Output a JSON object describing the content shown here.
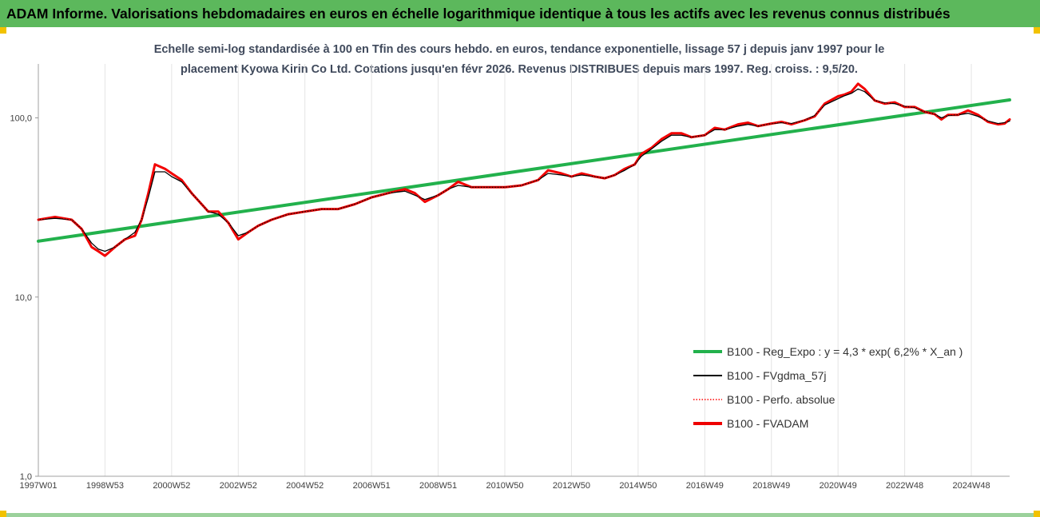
{
  "banner": {
    "title": "ADAM Informe. Valorisations hebdomadaires en euros en échelle logarithmique identique à tous les actifs avec les revenus connus distribués"
  },
  "colors": {
    "banner_bg": "#5cb85c",
    "corner": "#f2c200",
    "trend": "#22b14c",
    "fvgdma": "#000000",
    "perfo": "#ff0000",
    "fvadam": "#ee0000"
  },
  "chart_data": {
    "type": "line",
    "subtitle_line1": "Echelle semi-log standardisée à 100 en Tfin des cours hebdo. en euros, tendance exponentielle, lissage 57 j depuis janv 1997 pour le",
    "subtitle_line2": "placement Kyowa Kirin Co Ltd. Cotations jusqu'en févr 2026. Revenus DISTRIBUES depuis mars 1997. Reg. croiss. : 9,5/20.",
    "y_scale": "log",
    "ylim": [
      1,
      200
    ],
    "y_ticks": [
      {
        "value": 1,
        "label": "1,0"
      },
      {
        "value": 10,
        "label": "10,0"
      },
      {
        "value": 100,
        "label": "100,0"
      }
    ],
    "xlim": [
      1997.0,
      2026.15
    ],
    "x_ticks": [
      {
        "x": 1997.0,
        "label": "1997W01"
      },
      {
        "x": 1999.0,
        "label": "1998W53"
      },
      {
        "x": 2001.0,
        "label": "2000W52"
      },
      {
        "x": 2003.0,
        "label": "2002W52"
      },
      {
        "x": 2005.0,
        "label": "2004W52"
      },
      {
        "x": 2007.0,
        "label": "2006W51"
      },
      {
        "x": 2009.0,
        "label": "2008W51"
      },
      {
        "x": 2011.0,
        "label": "2010W50"
      },
      {
        "x": 2013.0,
        "label": "2012W50"
      },
      {
        "x": 2015.0,
        "label": "2014W50"
      },
      {
        "x": 2017.0,
        "label": "2016W49"
      },
      {
        "x": 2019.0,
        "label": "2018W49"
      },
      {
        "x": 2021.0,
        "label": "2020W49"
      },
      {
        "x": 2023.0,
        "label": "2022W48"
      },
      {
        "x": 2025.0,
        "label": "2024W48"
      }
    ],
    "grid": "vertical",
    "legend_position": "bottom-right",
    "legend": [
      {
        "label": "B100 - Reg_Expo : y = 4,3 * exp( 6,2% *  X_an )",
        "color": "#22b14c",
        "style": "solid-thick"
      },
      {
        "label": "B100 - FVgdma_57j",
        "color": "#000000",
        "style": "solid-thin"
      },
      {
        "label": "B100 - Perfo. absolue",
        "color": "#ff0000",
        "style": "dotted"
      },
      {
        "label": "B100 - FVADAM",
        "color": "#ee0000",
        "style": "solid-thick"
      }
    ],
    "series": [
      {
        "name": "B100 - Reg_Expo : y = 4,3 * exp( 6,2% *  X_an )",
        "x": [
          1997.0,
          2026.15
        ],
        "values": [
          20.5,
          126
        ]
      },
      {
        "name": "B100 - FVADAM",
        "x": [
          1997.0,
          1997.5,
          1998.0,
          1998.3,
          1998.6,
          1998.8,
          1999.0,
          1999.3,
          1999.6,
          1999.9,
          2000.1,
          2000.3,
          2000.5,
          2000.8,
          2001.0,
          2001.3,
          2001.6,
          2001.9,
          2002.1,
          2002.4,
          2002.7,
          2003.0,
          2003.3,
          2003.6,
          2004.0,
          2004.5,
          2005.0,
          2005.5,
          2006.0,
          2006.5,
          2007.0,
          2007.5,
          2008.0,
          2008.3,
          2008.6,
          2009.0,
          2009.3,
          2009.6,
          2010.0,
          2010.5,
          2011.0,
          2011.5,
          2012.0,
          2012.3,
          2012.7,
          2013.0,
          2013.3,
          2013.7,
          2014.0,
          2014.3,
          2014.6,
          2014.9,
          2015.1,
          2015.4,
          2015.7,
          2016.0,
          2016.3,
          2016.6,
          2017.0,
          2017.3,
          2017.6,
          2018.0,
          2018.3,
          2018.6,
          2019.0,
          2019.3,
          2019.6,
          2020.0,
          2020.3,
          2020.6,
          2021.0,
          2021.2,
          2021.4,
          2021.6,
          2021.8,
          2022.1,
          2022.4,
          2022.7,
          2023.0,
          2023.3,
          2023.6,
          2023.9,
          2024.1,
          2024.3,
          2024.6,
          2024.9,
          2025.2,
          2025.5,
          2025.8,
          2026.0,
          2026.15
        ],
        "values": [
          27,
          28,
          27,
          24,
          19,
          18,
          17,
          19,
          21,
          22,
          27,
          38,
          55,
          52,
          49,
          45,
          38,
          33,
          30,
          30,
          26,
          21,
          23,
          25,
          27,
          29,
          30,
          31,
          31,
          33,
          36,
          38,
          40,
          38,
          34,
          37,
          40,
          44,
          41,
          41,
          41,
          42,
          45,
          51,
          49,
          47,
          49,
          47,
          46,
          48,
          52,
          55,
          63,
          68,
          76,
          82,
          82,
          78,
          80,
          88,
          86,
          92,
          94,
          90,
          93,
          95,
          92,
          97,
          102,
          120,
          132,
          135,
          140,
          155,
          145,
          125,
          120,
          122,
          115,
          115,
          108,
          105,
          98,
          104,
          104,
          110,
          104,
          95,
          92,
          93,
          98
        ]
      },
      {
        "name": "B100 - FVgdma_57j",
        "x": [
          1997.0,
          1997.5,
          1998.0,
          1998.3,
          1998.6,
          1998.8,
          1999.0,
          1999.3,
          1999.6,
          1999.9,
          2000.1,
          2000.3,
          2000.5,
          2000.8,
          2001.0,
          2001.3,
          2001.6,
          2001.9,
          2002.1,
          2002.4,
          2002.7,
          2003.0,
          2003.3,
          2003.6,
          2004.0,
          2004.5,
          2005.0,
          2005.5,
          2006.0,
          2006.5,
          2007.0,
          2007.5,
          2008.0,
          2008.3,
          2008.6,
          2009.0,
          2009.3,
          2009.6,
          2010.0,
          2010.5,
          2011.0,
          2011.5,
          2012.0,
          2012.3,
          2012.7,
          2013.0,
          2013.3,
          2013.7,
          2014.0,
          2014.3,
          2014.6,
          2014.9,
          2015.1,
          2015.4,
          2015.7,
          2016.0,
          2016.3,
          2016.6,
          2017.0,
          2017.3,
          2017.6,
          2018.0,
          2018.3,
          2018.6,
          2019.0,
          2019.3,
          2019.6,
          2020.0,
          2020.3,
          2020.6,
          2021.0,
          2021.2,
          2021.4,
          2021.6,
          2021.8,
          2022.1,
          2022.4,
          2022.7,
          2023.0,
          2023.3,
          2023.6,
          2023.9,
          2024.1,
          2024.3,
          2024.6,
          2024.9,
          2025.2,
          2025.5,
          2025.8,
          2026.0,
          2026.15
        ],
        "values": [
          27,
          27.5,
          27,
          24,
          20,
          18.5,
          18,
          19,
          21,
          23,
          27,
          36,
          50,
          50,
          47,
          44,
          38,
          33,
          30,
          29,
          26,
          22,
          23,
          25,
          27,
          29,
          30,
          31,
          31,
          33,
          36,
          38,
          39,
          37,
          35,
          37,
          40,
          42,
          41,
          41,
          41,
          42,
          45,
          49,
          48,
          47,
          48,
          47,
          46,
          48,
          51,
          55,
          61,
          67,
          74,
          80,
          80,
          78,
          80,
          86,
          86,
          90,
          92,
          90,
          93,
          94,
          93,
          97,
          103,
          118,
          128,
          133,
          137,
          145,
          140,
          125,
          121,
          120,
          116,
          114,
          108,
          105,
          100,
          103,
          104,
          106,
          102,
          96,
          93,
          94,
          96
        ]
      },
      {
        "name": "B100 - Perfo. absolue",
        "x": [
          1997.0,
          1997.5,
          1998.0,
          1998.3,
          1998.6,
          1998.8,
          1999.0,
          1999.3,
          1999.6,
          1999.9,
          2000.1,
          2000.3,
          2000.5,
          2000.8,
          2001.0,
          2001.3,
          2001.6,
          2001.9,
          2002.1,
          2002.4,
          2002.7,
          2003.0,
          2003.3,
          2003.6,
          2004.0,
          2004.5,
          2005.0,
          2005.5,
          2006.0,
          2006.5,
          2007.0,
          2007.5,
          2008.0,
          2008.3,
          2008.6,
          2009.0,
          2009.3,
          2009.6,
          2010.0,
          2010.5,
          2011.0,
          2011.5,
          2012.0,
          2012.3,
          2012.7,
          2013.0,
          2013.3,
          2013.7,
          2014.0,
          2014.3,
          2014.6,
          2014.9,
          2015.1,
          2015.4,
          2015.7,
          2016.0,
          2016.3,
          2016.6,
          2017.0,
          2017.3,
          2017.6,
          2018.0,
          2018.3,
          2018.6,
          2019.0,
          2019.3,
          2019.6,
          2020.0,
          2020.3,
          2020.6,
          2021.0,
          2021.2,
          2021.4,
          2021.6,
          2021.8,
          2022.1,
          2022.4,
          2022.7,
          2023.0,
          2023.3,
          2023.6,
          2023.9,
          2024.1,
          2024.3,
          2024.6,
          2024.9,
          2025.2,
          2025.5,
          2025.8,
          2026.0,
          2026.15
        ],
        "values": [
          27,
          28,
          27,
          24,
          19,
          18,
          17,
          19,
          21,
          22,
          27,
          38,
          55,
          52,
          49,
          45,
          38,
          33,
          30,
          30,
          26,
          21,
          23,
          25,
          27,
          29,
          30,
          31,
          31,
          33,
          36,
          38,
          40,
          38,
          34,
          37,
          40,
          44,
          41,
          41,
          41,
          42,
          45,
          51,
          49,
          47,
          49,
          47,
          46,
          48,
          52,
          55,
          63,
          68,
          76,
          82,
          82,
          78,
          80,
          88,
          86,
          92,
          94,
          90,
          93,
          95,
          92,
          97,
          102,
          120,
          132,
          135,
          140,
          155,
          145,
          125,
          120,
          122,
          115,
          115,
          108,
          105,
          98,
          104,
          104,
          110,
          104,
          95,
          92,
          93,
          98
        ]
      }
    ]
  }
}
